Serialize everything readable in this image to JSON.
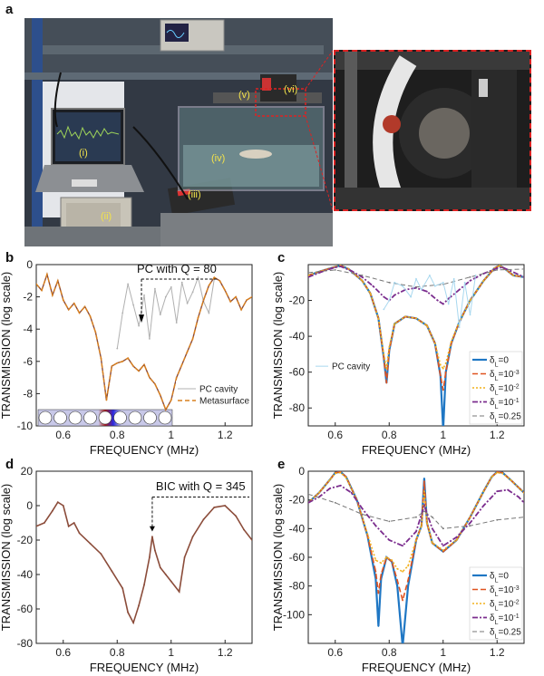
{
  "panels": {
    "a": "a",
    "b": "b",
    "c": "c",
    "d": "d",
    "e": "e"
  },
  "photo_labels": [
    "(i)",
    "(ii)",
    "(iii)",
    "(iv)",
    "(v)",
    "(vi)"
  ],
  "colors": {
    "grey": "#b0b0b0",
    "orange": "#d9801e",
    "brown": "#8b4c3a",
    "blue": "#1f77c4",
    "red": "#e0521f",
    "yellow": "#f2b01c",
    "purple": "#7b2d8e",
    "darkgrey": "#777777",
    "lightblue": "#a8d8ef",
    "dashed_red": "#d22222"
  },
  "chart_data": [
    {
      "id": "b",
      "type": "line",
      "xlabel": "FREQUENCY (MHz)",
      "ylabel": "TRANSMISSION (log scale)",
      "xlim": [
        0.5,
        1.3
      ],
      "ylim": [
        -10,
        0
      ],
      "xticks": [
        0.6,
        0.8,
        1,
        1.2
      ],
      "yticks": [
        0,
        -2,
        -4,
        -6,
        -8,
        -10
      ],
      "annotation": "PC with Q = 80",
      "legend": [
        "PC cavity",
        "Metasurface"
      ],
      "series": [
        {
          "name": "PC cavity",
          "x": [
            0.8,
            0.82,
            0.84,
            0.86,
            0.88,
            0.9,
            0.92,
            0.94,
            0.96,
            0.98,
            1.0,
            1.02,
            1.04,
            1.06,
            1.08,
            1.1,
            1.12,
            1.14,
            1.16
          ],
          "y": [
            -5.2,
            -3.0,
            -1.2,
            -2.5,
            -3.8,
            -1.9,
            -4.6,
            -1.5,
            -3.1,
            -2.0,
            -1.4,
            -3.6,
            -1.1,
            -2.4,
            -1.7,
            -0.8,
            -2.3,
            -3.0,
            -0.9
          ]
        },
        {
          "name": "Metasurface",
          "x": [
            0.5,
            0.52,
            0.54,
            0.56,
            0.58,
            0.6,
            0.62,
            0.64,
            0.66,
            0.68,
            0.7,
            0.72,
            0.74,
            0.76,
            0.78,
            0.8,
            0.82,
            0.84,
            0.86,
            0.88,
            0.9,
            0.92,
            0.94,
            0.96,
            0.98,
            1.0,
            1.02,
            1.04,
            1.06,
            1.08,
            1.1,
            1.12,
            1.14,
            1.16,
            1.18,
            1.2,
            1.22,
            1.24,
            1.26,
            1.28,
            1.3
          ],
          "y": [
            -1.2,
            -1.6,
            -0.6,
            -1.9,
            -1.0,
            -2.2,
            -2.8,
            -2.4,
            -3.0,
            -2.6,
            -3.2,
            -4.2,
            -5.8,
            -8.4,
            -6.3,
            -6.1,
            -6.0,
            -5.8,
            -6.3,
            -6.6,
            -6.2,
            -7.0,
            -7.4,
            -8.1,
            -9.0,
            -8.4,
            -7.0,
            -6.2,
            -5.4,
            -4.6,
            -3.3,
            -2.2,
            -1.3,
            -0.8,
            -1.0,
            -1.6,
            -2.3,
            -2.0,
            -2.8,
            -2.2,
            -2.0
          ]
        }
      ]
    },
    {
      "id": "c",
      "type": "line",
      "xlabel": "FREQUENCY (MHz)",
      "ylabel": "TRANSMISSION (log scale)",
      "xlim": [
        0.5,
        1.3
      ],
      "ylim": [
        -90,
        0
      ],
      "xticks": [
        0.6,
        0.8,
        1,
        1.2
      ],
      "yticks": [
        -20,
        -40,
        -60,
        -80
      ],
      "legend_pc": "PC cavity",
      "legend": [
        "δL=0",
        "δL=10^-3",
        "δL=10^-2",
        "δL=10^-1",
        "δL=0.25"
      ],
      "legend_base": [
        "δ",
        "δ",
        "δ",
        "δ",
        "δ"
      ],
      "legend_sub": [
        "L",
        "L",
        "L",
        "L",
        "L"
      ],
      "legend_eq": [
        "=0",
        "=10",
        "=10",
        "=10",
        "=0.25"
      ],
      "legend_sup": [
        "",
        "-3",
        "-2",
        "-1",
        ""
      ],
      "series": [
        {
          "name": "δL=0",
          "x": [
            0.5,
            0.55,
            0.6,
            0.62,
            0.65,
            0.7,
            0.73,
            0.76,
            0.78,
            0.79,
            0.8,
            0.82,
            0.86,
            0.9,
            0.94,
            0.97,
            0.99,
            1.0,
            1.01,
            1.03,
            1.06,
            1.1,
            1.15,
            1.19,
            1.21,
            1.23,
            1.26,
            1.3
          ],
          "y": [
            -6,
            -3.5,
            -1.2,
            -0.5,
            -2.5,
            -9,
            -16,
            -30,
            -52,
            -66,
            -48,
            -33,
            -29,
            -30,
            -34,
            -44,
            -62,
            -92,
            -60,
            -44,
            -32,
            -20,
            -9,
            -2,
            -0.5,
            -2.5,
            -6,
            -7
          ]
        },
        {
          "name": "δL=10^-3",
          "x": [
            0.5,
            0.55,
            0.6,
            0.62,
            0.65,
            0.7,
            0.73,
            0.76,
            0.78,
            0.79,
            0.8,
            0.82,
            0.86,
            0.9,
            0.94,
            0.97,
            0.99,
            1.0,
            1.01,
            1.03,
            1.06,
            1.1,
            1.15,
            1.19,
            1.21,
            1.23,
            1.26,
            1.3
          ],
          "y": [
            -6,
            -3.5,
            -1.2,
            -0.5,
            -2.5,
            -9,
            -16,
            -30,
            -52,
            -66,
            -48,
            -33,
            -29,
            -30,
            -34,
            -44,
            -62,
            -70,
            -60,
            -44,
            -32,
            -20,
            -9,
            -2,
            -0.5,
            -2.5,
            -6,
            -7
          ]
        },
        {
          "name": "δL=10^-2",
          "x": [
            0.5,
            0.55,
            0.6,
            0.62,
            0.65,
            0.7,
            0.73,
            0.76,
            0.78,
            0.79,
            0.8,
            0.82,
            0.86,
            0.9,
            0.94,
            0.97,
            0.99,
            1.0,
            1.01,
            1.03,
            1.06,
            1.1,
            1.15,
            1.19,
            1.21,
            1.23,
            1.26,
            1.3
          ],
          "y": [
            -6,
            -3.5,
            -1.2,
            -0.5,
            -2.5,
            -9,
            -16,
            -30,
            -50,
            -58,
            -46,
            -33,
            -29,
            -30,
            -34,
            -44,
            -56,
            -58,
            -55,
            -43,
            -32,
            -20,
            -9,
            -2,
            -0.5,
            -2.5,
            -6,
            -7
          ]
        },
        {
          "name": "δL=10^-1",
          "x": [
            0.5,
            0.55,
            0.6,
            0.62,
            0.66,
            0.7,
            0.74,
            0.78,
            0.8,
            0.82,
            0.86,
            0.9,
            0.94,
            0.98,
            1.0,
            1.02,
            1.06,
            1.1,
            1.15,
            1.2,
            1.22,
            1.25,
            1.3
          ],
          "y": [
            -7,
            -4,
            -1.5,
            -1,
            -3.5,
            -7,
            -12,
            -18,
            -20,
            -17,
            -14,
            -13,
            -15,
            -20,
            -22,
            -19,
            -14,
            -9,
            -5,
            -2,
            -1.5,
            -3.5,
            -7
          ]
        },
        {
          "name": "δL=0.25",
          "x": [
            0.5,
            0.6,
            0.7,
            0.8,
            0.9,
            1.0,
            1.1,
            1.2,
            1.3
          ],
          "y": [
            -4.5,
            -3,
            -6,
            -10,
            -12.5,
            -11,
            -7,
            -3,
            -2.5
          ]
        },
        {
          "name": "PC cavity",
          "x": [
            0.78,
            0.8,
            0.82,
            0.85,
            0.88,
            0.9,
            0.92,
            0.95,
            0.97,
            1.0,
            1.02,
            1.04,
            1.06,
            1.08,
            1.1,
            1.12
          ],
          "y": [
            -25,
            -20,
            -10,
            -12,
            -18,
            -8,
            -14,
            -6,
            -12,
            -10,
            -22,
            -8,
            -35,
            -10,
            -28,
            -6
          ]
        }
      ]
    },
    {
      "id": "d",
      "type": "line",
      "xlabel": "FREQUENCY (MHz)",
      "ylabel": "TRANSMISSION (log scale)",
      "xlim": [
        0.5,
        1.3
      ],
      "ylim": [
        -80,
        20
      ],
      "xticks": [
        0.6,
        0.8,
        1,
        1.2
      ],
      "yticks": [
        20,
        0,
        -20,
        -40,
        -60,
        -80
      ],
      "annotation": "BIC with Q = 345",
      "series": [
        {
          "name": "",
          "x": [
            0.5,
            0.53,
            0.56,
            0.58,
            0.6,
            0.62,
            0.64,
            0.66,
            0.7,
            0.74,
            0.78,
            0.82,
            0.84,
            0.86,
            0.88,
            0.9,
            0.92,
            0.93,
            0.94,
            0.96,
            0.98,
            1.0,
            1.03,
            1.05,
            1.08,
            1.12,
            1.16,
            1.2,
            1.24,
            1.27,
            1.3
          ],
          "y": [
            -12,
            -10,
            -3,
            2,
            0,
            -12,
            -10,
            -16,
            -22,
            -28,
            -38,
            -48,
            -62,
            -68,
            -58,
            -46,
            -30,
            -18,
            -26,
            -36,
            -40,
            -44,
            -50,
            -30,
            -18,
            -8,
            -1,
            0,
            -6,
            -14,
            -20
          ]
        }
      ]
    },
    {
      "id": "e",
      "type": "line",
      "xlabel": "FREQUENCY (MHz)",
      "ylabel": "TRANSMISSION (log scale)",
      "xlim": [
        0.5,
        1.3
      ],
      "ylim": [
        -120,
        0
      ],
      "xticks": [
        0.6,
        0.8,
        1,
        1.2
      ],
      "yticks": [
        0,
        -20,
        -40,
        -60,
        -80,
        -100
      ],
      "legend": [
        "δL=0",
        "δL=10^-3",
        "δL=10^-2",
        "δL=10^-1",
        "δL=0.25"
      ],
      "legend_base": [
        "δ",
        "δ",
        "δ",
        "δ",
        "δ"
      ],
      "legend_sub": [
        "L",
        "L",
        "L",
        "L",
        "L"
      ],
      "legend_eq": [
        "=0",
        "=10",
        "=10",
        "=10",
        "=0.25"
      ],
      "legend_sup": [
        "",
        "-3",
        "-2",
        "-1",
        ""
      ],
      "series": [
        {
          "name": "δL=0",
          "x": [
            0.5,
            0.54,
            0.58,
            0.6,
            0.62,
            0.64,
            0.68,
            0.72,
            0.75,
            0.76,
            0.77,
            0.79,
            0.81,
            0.83,
            0.85,
            0.87,
            0.9,
            0.92,
            0.93,
            0.94,
            0.96,
            1.0,
            1.05,
            1.1,
            1.15,
            1.18,
            1.2,
            1.22,
            1.25,
            1.3
          ],
          "y": [
            -22,
            -15,
            -6,
            -1,
            -0.5,
            -4,
            -20,
            -45,
            -75,
            -108,
            -75,
            -60,
            -63,
            -80,
            -122,
            -80,
            -48,
            -38,
            -5,
            -36,
            -50,
            -56,
            -48,
            -32,
            -14,
            -4,
            -0.5,
            -1,
            -6,
            -15
          ]
        },
        {
          "name": "δL=10^-3",
          "x": [
            0.5,
            0.54,
            0.58,
            0.6,
            0.62,
            0.64,
            0.68,
            0.72,
            0.75,
            0.76,
            0.77,
            0.79,
            0.81,
            0.83,
            0.85,
            0.87,
            0.9,
            0.92,
            0.93,
            0.94,
            0.96,
            1.0,
            1.05,
            1.1,
            1.15,
            1.18,
            1.2,
            1.22,
            1.25,
            1.3
          ],
          "y": [
            -22,
            -15,
            -6,
            -1,
            -0.5,
            -4,
            -20,
            -45,
            -70,
            -85,
            -72,
            -60,
            -63,
            -76,
            -90,
            -76,
            -48,
            -38,
            -7,
            -36,
            -50,
            -56,
            -48,
            -32,
            -14,
            -4,
            -0.5,
            -1,
            -6,
            -15
          ]
        },
        {
          "name": "δL=10^-2",
          "x": [
            0.5,
            0.54,
            0.58,
            0.6,
            0.62,
            0.64,
            0.68,
            0.72,
            0.75,
            0.77,
            0.79,
            0.81,
            0.83,
            0.85,
            0.87,
            0.9,
            0.92,
            0.93,
            0.94,
            0.96,
            1.0,
            1.05,
            1.1,
            1.15,
            1.18,
            1.2,
            1.22,
            1.25,
            1.3
          ],
          "y": [
            -22,
            -15,
            -6,
            -1.5,
            -1,
            -4.5,
            -20,
            -44,
            -62,
            -64,
            -60,
            -62,
            -68,
            -70,
            -66,
            -48,
            -38,
            -14,
            -36,
            -50,
            -55,
            -48,
            -32,
            -14,
            -4,
            -1,
            -1.5,
            -6,
            -15
          ]
        },
        {
          "name": "δL=10^-1",
          "x": [
            0.5,
            0.54,
            0.58,
            0.62,
            0.66,
            0.7,
            0.75,
            0.8,
            0.85,
            0.9,
            0.93,
            0.96,
            1.0,
            1.05,
            1.1,
            1.15,
            1.2,
            1.24,
            1.28,
            1.3
          ],
          "y": [
            -22,
            -18,
            -12,
            -10,
            -15,
            -26,
            -38,
            -48,
            -52,
            -42,
            -24,
            -40,
            -52,
            -46,
            -36,
            -24,
            -14,
            -13,
            -18,
            -22
          ]
        },
        {
          "name": "δL=0.25",
          "x": [
            0.5,
            0.6,
            0.7,
            0.8,
            0.9,
            0.93,
            0.96,
            1.0,
            1.1,
            1.2,
            1.3
          ],
          "y": [
            -16,
            -22,
            -30,
            -35,
            -32,
            -28,
            -32,
            -40,
            -38,
            -34,
            -32
          ]
        }
      ]
    }
  ]
}
